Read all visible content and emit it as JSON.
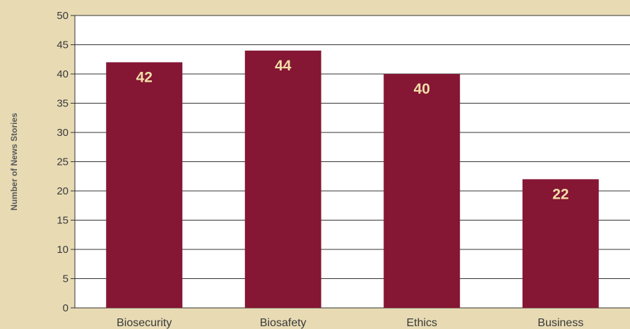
{
  "colors": {
    "background": "#e8dbb4",
    "plot_area": "#ffffff",
    "bar": "#851634",
    "data_label": "#f3dfa8",
    "gridline": "#333333"
  },
  "chart_data": {
    "type": "bar",
    "title": "",
    "xlabel": "",
    "ylabel": "Number of News Stories",
    "categories": [
      "Biosecurity",
      "Biosafety",
      "Ethics",
      "Business"
    ],
    "values": [
      42,
      44,
      40,
      22
    ],
    "data_labels": [
      "42",
      "44",
      "40",
      "22"
    ],
    "ylim": [
      0,
      50
    ],
    "yticks": [
      0,
      5,
      10,
      15,
      20,
      25,
      30,
      35,
      40,
      45,
      50
    ],
    "grid": true,
    "legend": "none"
  }
}
